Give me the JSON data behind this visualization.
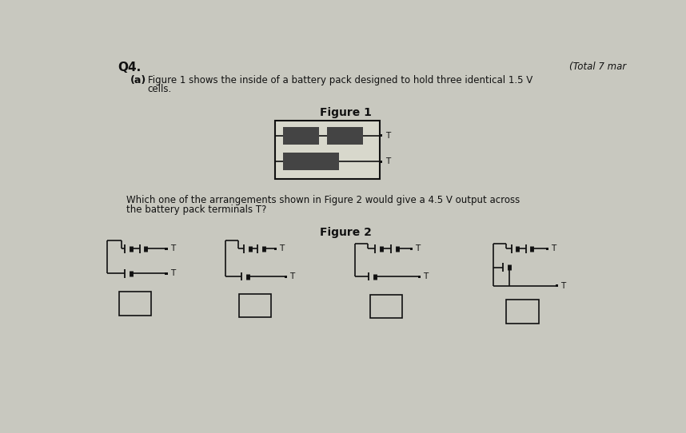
{
  "bg_color": "#c8c8bf",
  "title_q": "Q4.",
  "title_marks": "(Total 7 mar",
  "part_a_label": "(a)",
  "part_a_text_line1": "Figure 1 shows the inside of a battery pack designed to hold three identical 1.5 V",
  "part_a_text_line2": "cells.",
  "fig1_label": "Figure 1",
  "question_text_line1": "Which one of the arrangements shown in Figure 2 would give a 4.5 V output across",
  "question_text_line2": "the battery pack terminals T?",
  "fig2_label": "Figure 2",
  "cell_color": "#444444",
  "line_color": "#111111",
  "fig1_box_color": "#d8d8cc",
  "text_color": "#111111"
}
